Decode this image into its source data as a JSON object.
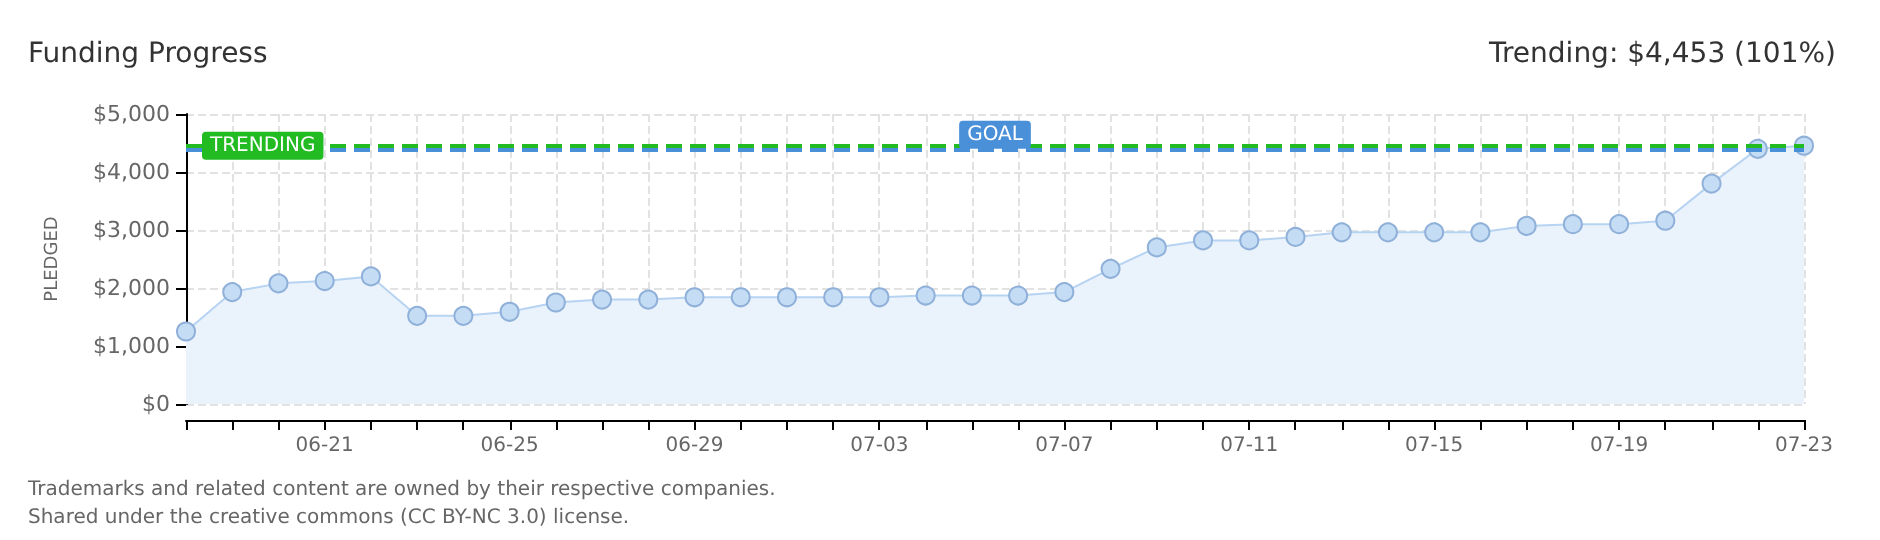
{
  "chart_data": {
    "type": "area",
    "title": "Funding Progress",
    "annotations": [
      "Trending: $4,453 (101%)",
      "Trademarks and related content are owned by their respective companies.",
      "Shared under the creative commons (CC BY-NC 3.0) license."
    ],
    "categories": [
      null,
      null,
      null,
      "06-21",
      null,
      null,
      null,
      "06-25",
      null,
      null,
      null,
      "06-29",
      null,
      null,
      null,
      "07-03",
      null,
      null,
      null,
      "07-07",
      null,
      null,
      null,
      "07-11",
      null,
      null,
      null,
      "07-15",
      null,
      null,
      null,
      "07-19",
      null,
      null,
      null,
      "07-23"
    ],
    "series": [
      {
        "color": "#b7d3f2",
        "values": [
          1250,
          1930,
          2080,
          2120,
          2200,
          1520,
          1520,
          1590,
          1750,
          1800,
          1800,
          1840,
          1840,
          1840,
          1840,
          1840,
          1870,
          1870,
          1870,
          1930,
          2330,
          2700,
          2820,
          2820,
          2880,
          2960,
          2960,
          2960,
          2960,
          3070,
          3100,
          3100,
          3160,
          3800,
          4400,
          4453
        ]
      }
    ],
    "ylabel": "PLEDGED",
    "ylim": [
      0,
      5000
    ],
    "yticks": [
      {
        "value": 0,
        "label": "$0"
      },
      {
        "value": 1000,
        "label": "$1,000"
      },
      {
        "value": 2000,
        "label": "$2,000"
      },
      {
        "value": 3000,
        "label": "$3,000"
      },
      {
        "value": 4000,
        "label": "$4,000"
      },
      {
        "value": 5000,
        "label": "$5,000"
      }
    ],
    "grid": true,
    "marker": "circle",
    "ref_lines": [
      {
        "axis": "y",
        "value": 4453,
        "label": "TRENDING",
        "color": "#22bb22",
        "line_style": "dashed"
      },
      {
        "axis": "y",
        "value": 4400,
        "label": "GOAL",
        "color": "#4a90d9",
        "line_style": "dashed"
      }
    ]
  }
}
